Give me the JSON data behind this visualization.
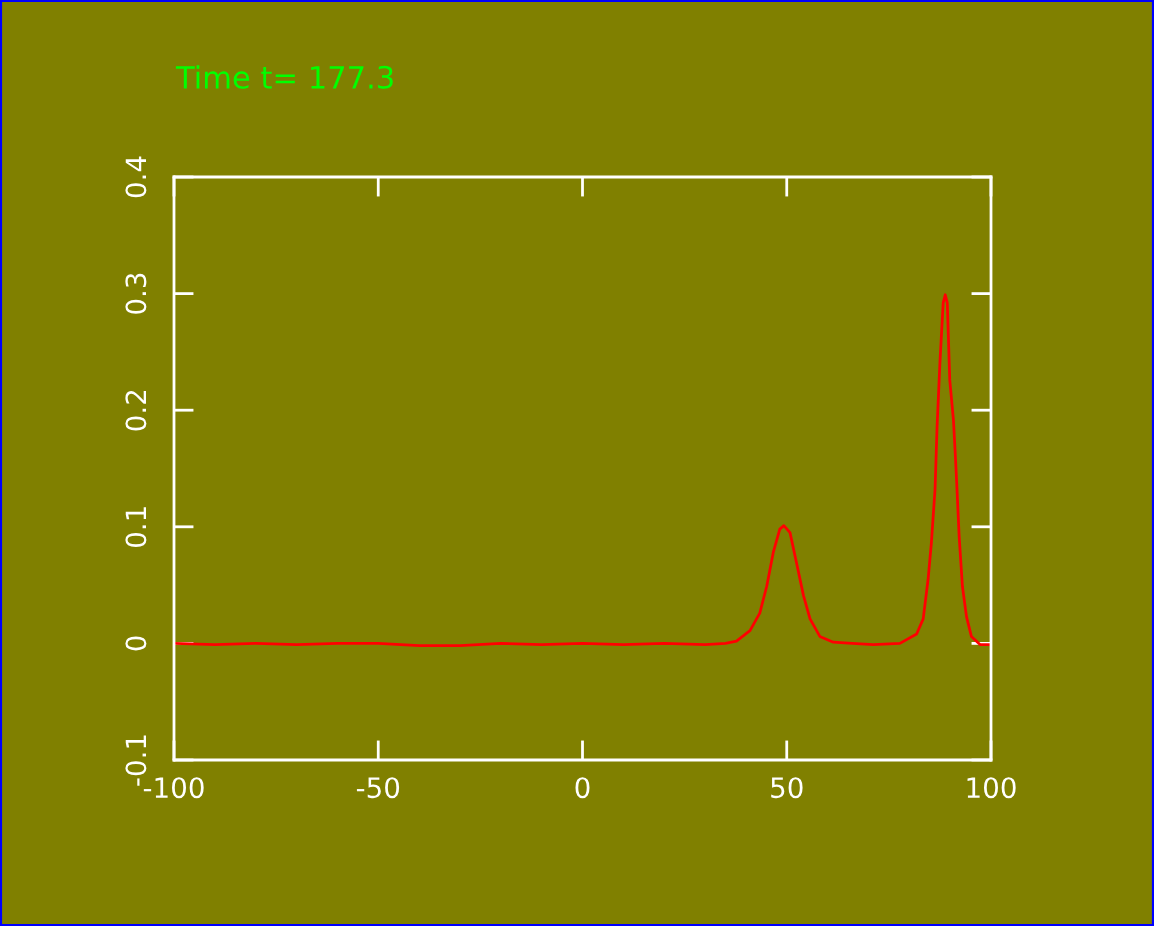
{
  "chart_data": {
    "type": "line",
    "title": "Time t= 177.3",
    "x": [
      -100,
      -90,
      -80,
      -70,
      -60,
      -50,
      -40,
      -30,
      -20,
      -10,
      0,
      10,
      20,
      30,
      35,
      37.7,
      41.0,
      43.4,
      45.1,
      46.7,
      48.3,
      49.3,
      50.8,
      52.4,
      54.1,
      55.7,
      58.1,
      61.4,
      66,
      71.2,
      77.7,
      81.8,
      83.4,
      84.6,
      85.4,
      86.3,
      86.8,
      87.5,
      88.3,
      88.8,
      89.3,
      89.9,
      90.8,
      91.2,
      91.6,
      92.2,
      93.0,
      94.0,
      95.2,
      97.3,
      100
    ],
    "series": [
      {
        "color": "#ff0000",
        "values": [
          0,
          -0.001,
          0,
          -0.001,
          0,
          0,
          -0.002,
          -0.002,
          0,
          -0.001,
          0,
          -0.001,
          0,
          -0.001,
          0,
          0.002,
          0.011,
          0.026,
          0.049,
          0.078,
          0.098,
          0.101,
          0.095,
          0.069,
          0.041,
          0.021,
          0.006,
          0.001,
          0,
          -0.001,
          0,
          0.008,
          0.021,
          0.055,
          0.086,
          0.132,
          0.186,
          0.241,
          0.292,
          0.299,
          0.292,
          0.226,
          0.192,
          0.166,
          0.138,
          0.092,
          0.049,
          0.023,
          0.006,
          -0.001,
          -0.001
        ]
      }
    ],
    "xlim": [
      -100,
      100
    ],
    "ylim": [
      -0.1,
      0.4
    ],
    "xticks": [
      -100,
      -50,
      0,
      50,
      100
    ],
    "yticks": [
      -0.1,
      0,
      0.1,
      0.2,
      0.3,
      0.4
    ],
    "grid": false,
    "legend": false,
    "marker": "none",
    "line_style": "solid"
  }
}
